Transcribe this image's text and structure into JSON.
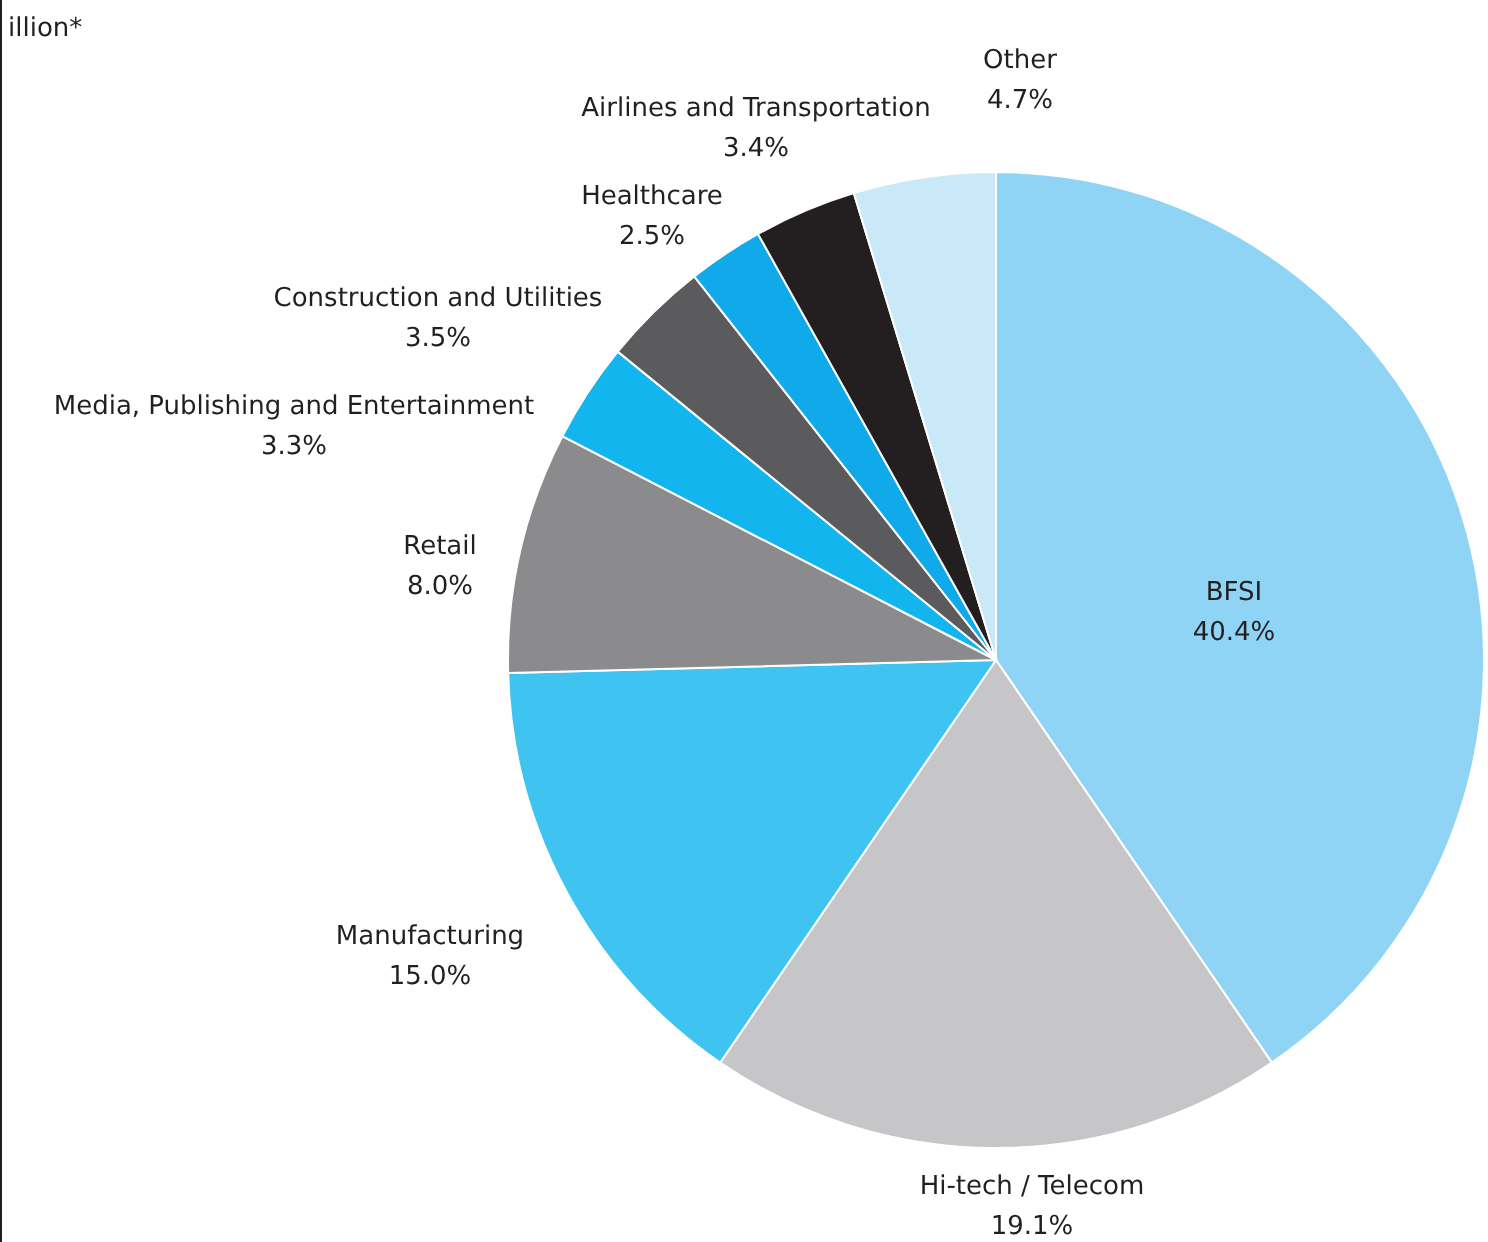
{
  "chart_data": {
    "type": "pie",
    "annotations": [
      "illion*"
    ],
    "categories": [
      "BFSI",
      "Hi-tech / Telecom",
      "Manufacturing",
      "Retail",
      "Media, Publishing and Entertainment",
      "Construction and Utilities",
      "Healthcare",
      "Airlines and Transportation",
      "Other"
    ],
    "values": [
      40.4,
      19.1,
      15.0,
      8.0,
      3.3,
      3.5,
      2.5,
      3.4,
      4.7
    ],
    "value_labels": [
      "40.4%",
      "19.1%",
      "15.0%",
      "8.0%",
      "3.3%",
      "3.5%",
      "2.5%",
      "3.4%",
      "4.7%"
    ],
    "colors": [
      "#8fd4f5",
      "#c6c6c8",
      "#3fc3f0",
      "#8b8b8d",
      "#12b5ee",
      "#5b5b5d",
      "#10aaea",
      "#231f20",
      "#c9e9f8"
    ]
  }
}
